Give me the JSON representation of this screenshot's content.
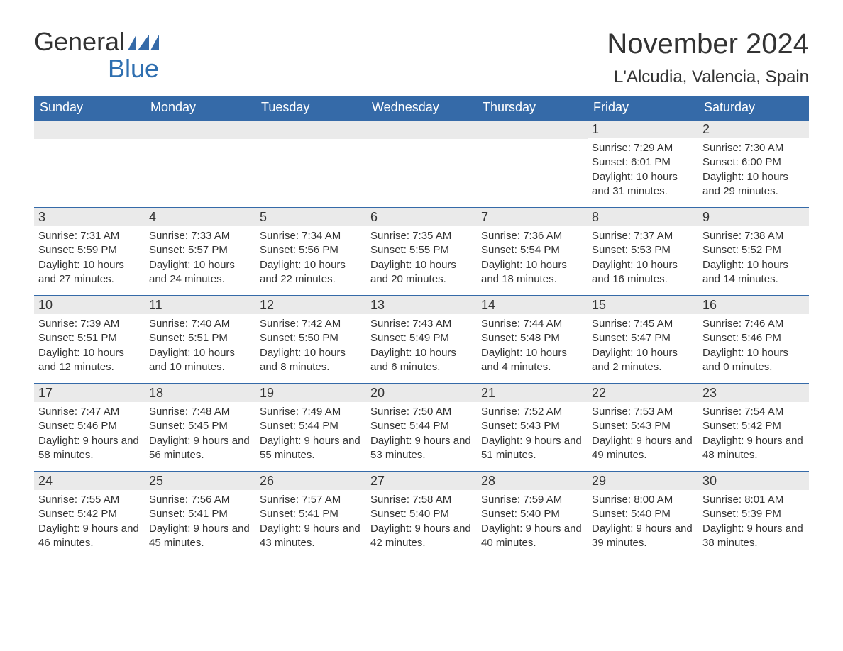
{
  "logo": {
    "general": "General",
    "blue": "Blue",
    "flag_color": "#356aa8"
  },
  "title": "November 2024",
  "location": "L'Alcudia, Valencia, Spain",
  "colors": {
    "header_bg": "#356aa8",
    "header_text": "#ffffff",
    "row_divider": "#356aa8",
    "daynum_bg": "#eaeaea",
    "body_text": "#333333",
    "page_bg": "#ffffff"
  },
  "day_headers": [
    "Sunday",
    "Monday",
    "Tuesday",
    "Wednesday",
    "Thursday",
    "Friday",
    "Saturday"
  ],
  "weeks": [
    [
      {
        "empty": true
      },
      {
        "empty": true
      },
      {
        "empty": true
      },
      {
        "empty": true
      },
      {
        "empty": true
      },
      {
        "n": "1",
        "sunrise": "Sunrise: 7:29 AM",
        "sunset": "Sunset: 6:01 PM",
        "daylight": "Daylight: 10 hours and 31 minutes."
      },
      {
        "n": "2",
        "sunrise": "Sunrise: 7:30 AM",
        "sunset": "Sunset: 6:00 PM",
        "daylight": "Daylight: 10 hours and 29 minutes."
      }
    ],
    [
      {
        "n": "3",
        "sunrise": "Sunrise: 7:31 AM",
        "sunset": "Sunset: 5:59 PM",
        "daylight": "Daylight: 10 hours and 27 minutes."
      },
      {
        "n": "4",
        "sunrise": "Sunrise: 7:33 AM",
        "sunset": "Sunset: 5:57 PM",
        "daylight": "Daylight: 10 hours and 24 minutes."
      },
      {
        "n": "5",
        "sunrise": "Sunrise: 7:34 AM",
        "sunset": "Sunset: 5:56 PM",
        "daylight": "Daylight: 10 hours and 22 minutes."
      },
      {
        "n": "6",
        "sunrise": "Sunrise: 7:35 AM",
        "sunset": "Sunset: 5:55 PM",
        "daylight": "Daylight: 10 hours and 20 minutes."
      },
      {
        "n": "7",
        "sunrise": "Sunrise: 7:36 AM",
        "sunset": "Sunset: 5:54 PM",
        "daylight": "Daylight: 10 hours and 18 minutes."
      },
      {
        "n": "8",
        "sunrise": "Sunrise: 7:37 AM",
        "sunset": "Sunset: 5:53 PM",
        "daylight": "Daylight: 10 hours and 16 minutes."
      },
      {
        "n": "9",
        "sunrise": "Sunrise: 7:38 AM",
        "sunset": "Sunset: 5:52 PM",
        "daylight": "Daylight: 10 hours and 14 minutes."
      }
    ],
    [
      {
        "n": "10",
        "sunrise": "Sunrise: 7:39 AM",
        "sunset": "Sunset: 5:51 PM",
        "daylight": "Daylight: 10 hours and 12 minutes."
      },
      {
        "n": "11",
        "sunrise": "Sunrise: 7:40 AM",
        "sunset": "Sunset: 5:51 PM",
        "daylight": "Daylight: 10 hours and 10 minutes."
      },
      {
        "n": "12",
        "sunrise": "Sunrise: 7:42 AM",
        "sunset": "Sunset: 5:50 PM",
        "daylight": "Daylight: 10 hours and 8 minutes."
      },
      {
        "n": "13",
        "sunrise": "Sunrise: 7:43 AM",
        "sunset": "Sunset: 5:49 PM",
        "daylight": "Daylight: 10 hours and 6 minutes."
      },
      {
        "n": "14",
        "sunrise": "Sunrise: 7:44 AM",
        "sunset": "Sunset: 5:48 PM",
        "daylight": "Daylight: 10 hours and 4 minutes."
      },
      {
        "n": "15",
        "sunrise": "Sunrise: 7:45 AM",
        "sunset": "Sunset: 5:47 PM",
        "daylight": "Daylight: 10 hours and 2 minutes."
      },
      {
        "n": "16",
        "sunrise": "Sunrise: 7:46 AM",
        "sunset": "Sunset: 5:46 PM",
        "daylight": "Daylight: 10 hours and 0 minutes."
      }
    ],
    [
      {
        "n": "17",
        "sunrise": "Sunrise: 7:47 AM",
        "sunset": "Sunset: 5:46 PM",
        "daylight": "Daylight: 9 hours and 58 minutes."
      },
      {
        "n": "18",
        "sunrise": "Sunrise: 7:48 AM",
        "sunset": "Sunset: 5:45 PM",
        "daylight": "Daylight: 9 hours and 56 minutes."
      },
      {
        "n": "19",
        "sunrise": "Sunrise: 7:49 AM",
        "sunset": "Sunset: 5:44 PM",
        "daylight": "Daylight: 9 hours and 55 minutes."
      },
      {
        "n": "20",
        "sunrise": "Sunrise: 7:50 AM",
        "sunset": "Sunset: 5:44 PM",
        "daylight": "Daylight: 9 hours and 53 minutes."
      },
      {
        "n": "21",
        "sunrise": "Sunrise: 7:52 AM",
        "sunset": "Sunset: 5:43 PM",
        "daylight": "Daylight: 9 hours and 51 minutes."
      },
      {
        "n": "22",
        "sunrise": "Sunrise: 7:53 AM",
        "sunset": "Sunset: 5:43 PM",
        "daylight": "Daylight: 9 hours and 49 minutes."
      },
      {
        "n": "23",
        "sunrise": "Sunrise: 7:54 AM",
        "sunset": "Sunset: 5:42 PM",
        "daylight": "Daylight: 9 hours and 48 minutes."
      }
    ],
    [
      {
        "n": "24",
        "sunrise": "Sunrise: 7:55 AM",
        "sunset": "Sunset: 5:42 PM",
        "daylight": "Daylight: 9 hours and 46 minutes."
      },
      {
        "n": "25",
        "sunrise": "Sunrise: 7:56 AM",
        "sunset": "Sunset: 5:41 PM",
        "daylight": "Daylight: 9 hours and 45 minutes."
      },
      {
        "n": "26",
        "sunrise": "Sunrise: 7:57 AM",
        "sunset": "Sunset: 5:41 PM",
        "daylight": "Daylight: 9 hours and 43 minutes."
      },
      {
        "n": "27",
        "sunrise": "Sunrise: 7:58 AM",
        "sunset": "Sunset: 5:40 PM",
        "daylight": "Daylight: 9 hours and 42 minutes."
      },
      {
        "n": "28",
        "sunrise": "Sunrise: 7:59 AM",
        "sunset": "Sunset: 5:40 PM",
        "daylight": "Daylight: 9 hours and 40 minutes."
      },
      {
        "n": "29",
        "sunrise": "Sunrise: 8:00 AM",
        "sunset": "Sunset: 5:40 PM",
        "daylight": "Daylight: 9 hours and 39 minutes."
      },
      {
        "n": "30",
        "sunrise": "Sunrise: 8:01 AM",
        "sunset": "Sunset: 5:39 PM",
        "daylight": "Daylight: 9 hours and 38 minutes."
      }
    ]
  ]
}
